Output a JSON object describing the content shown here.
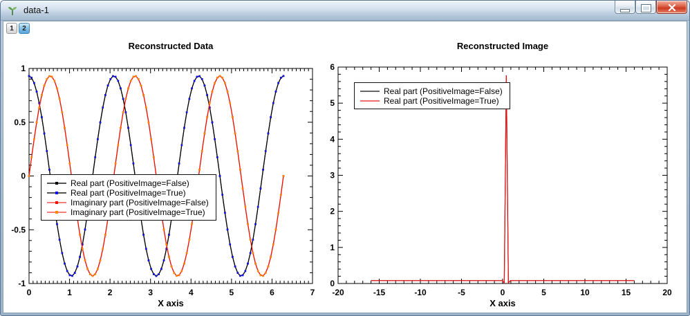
{
  "window": {
    "title": "data-1"
  },
  "titlebar_controls": {
    "minimize": "minimize",
    "maximize": "maximize",
    "close": "close"
  },
  "tabs": [
    {
      "label": "1",
      "active": false
    },
    {
      "label": "2",
      "active": true
    }
  ],
  "chart_data": [
    {
      "type": "line",
      "title": "Reconstructed Data",
      "xlabel": "X axis",
      "ylabel": "",
      "xlim": [
        0,
        7
      ],
      "ylim": [
        -1,
        1
      ],
      "xticks": [
        0,
        1,
        2,
        3,
        4,
        5,
        6,
        7
      ],
      "yticks": [
        -1,
        -0.5,
        0,
        0.5,
        1
      ],
      "x_minor_step": 0.1,
      "y_minor_step": 0.1,
      "grid": false,
      "legend_position": "middle-left",
      "sampling": {
        "x_start": 0,
        "x_end": 6.2832,
        "n_points": 101
      },
      "series": [
        {
          "name": "Real part (PositiveImage=False)",
          "formula": "y = 0.93*cos(3x)",
          "fn": "cos",
          "amplitude": 0.93,
          "frequency": 3,
          "line_color": "#000000",
          "marker_color": "#000000",
          "legend_line_color": "#555555"
        },
        {
          "name": "Real part (PositiveImage=True)",
          "formula": "y = 0.93*cos(3x)",
          "fn": "cos",
          "amplitude": 0.93,
          "frequency": 3,
          "line_color": "#000000",
          "marker_color": "#1111ee",
          "legend_line_color": "#555555"
        },
        {
          "name": "Imaginary part (PositiveImage=False)",
          "formula": "y = 0.93*sin(3x)",
          "fn": "sin",
          "amplitude": 0.93,
          "frequency": 3,
          "line_color": "#ee1100",
          "marker_color": "#ee1100",
          "legend_line_color": "#f28080"
        },
        {
          "name": "Imaginary part (PositiveImage=True)",
          "formula": "y = 0.93*sin(3x)",
          "fn": "sin",
          "amplitude": 0.93,
          "frequency": 3,
          "line_color": "#ee1100",
          "marker_color": "#ff8800",
          "legend_line_color": "#f28080"
        }
      ]
    },
    {
      "type": "line",
      "title": "Reconstructed Image",
      "xlabel": "X axis",
      "ylabel": "",
      "xlim": [
        -20,
        20
      ],
      "ylim": [
        0,
        6
      ],
      "xticks": [
        -20,
        -15,
        -10,
        -5,
        0,
        5,
        10,
        15,
        20
      ],
      "yticks": [
        0,
        1,
        2,
        3,
        4,
        5,
        6
      ],
      "x_minor_step": 1,
      "y_minor_step": 0.2,
      "grid": false,
      "legend_position": "top-left",
      "series": [
        {
          "name": "Real part (PositiveImage=False)",
          "line_color": "#333333",
          "legend_line_color": "#666666",
          "points": [
            [
              -16,
              0.08
            ],
            [
              -0.05,
              0.08
            ],
            [
              0.2,
              0.02
            ],
            [
              0.45,
              5.77
            ],
            [
              0.7,
              0.02
            ],
            [
              0.95,
              0.08
            ],
            [
              16,
              0.08
            ]
          ]
        },
        {
          "name": "Real part (PositiveImage=True)",
          "line_color": "#ee1111",
          "legend_line_color": "#f26d6d",
          "points": [
            [
              -16,
              0.08
            ],
            [
              -0.05,
              0.08
            ],
            [
              0.2,
              0.02
            ],
            [
              0.45,
              5.77
            ],
            [
              0.7,
              0.02
            ],
            [
              0.95,
              0.08
            ],
            [
              16,
              0.08
            ]
          ]
        }
      ]
    }
  ]
}
